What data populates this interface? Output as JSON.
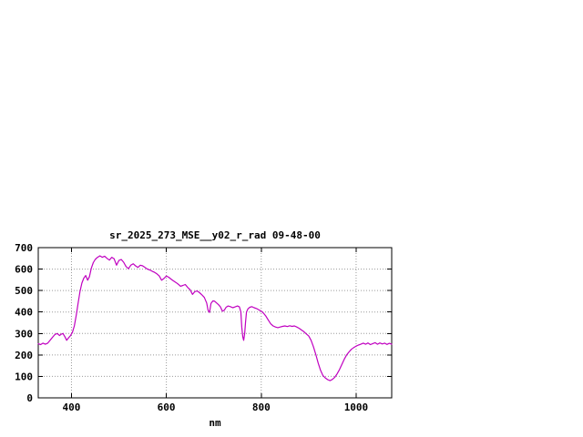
{
  "page": {
    "background": "#ffffff"
  },
  "chart_data": {
    "type": "line",
    "title": "sr_2025_273_MSE__y02_r_rad 09-48-00",
    "xlabel": "nm",
    "ylabel": "",
    "xlim": [
      330,
      1075
    ],
    "ylim": [
      0,
      700
    ],
    "xticks": [
      400,
      600,
      800,
      1000
    ],
    "yticks": [
      0,
      100,
      200,
      300,
      400,
      500,
      600,
      700
    ],
    "grid": true,
    "grid_style": "dotted",
    "legend": "none",
    "line_color": "#c000c0",
    "series": [
      {
        "name": "sr_2025_273_MSE__y02_r_rad",
        "points": [
          [
            330,
            252
          ],
          [
            335,
            248
          ],
          [
            340,
            255
          ],
          [
            345,
            250
          ],
          [
            350,
            255
          ],
          [
            355,
            268
          ],
          [
            360,
            282
          ],
          [
            365,
            295
          ],
          [
            370,
            300
          ],
          [
            375,
            290
          ],
          [
            378,
            296
          ],
          [
            382,
            300
          ],
          [
            386,
            285
          ],
          [
            390,
            268
          ],
          [
            394,
            280
          ],
          [
            398,
            290
          ],
          [
            402,
            305
          ],
          [
            406,
            335
          ],
          [
            410,
            385
          ],
          [
            414,
            440
          ],
          [
            418,
            495
          ],
          [
            422,
            535
          ],
          [
            426,
            558
          ],
          [
            430,
            570
          ],
          [
            434,
            548
          ],
          [
            438,
            565
          ],
          [
            442,
            605
          ],
          [
            446,
            630
          ],
          [
            450,
            645
          ],
          [
            455,
            655
          ],
          [
            460,
            662
          ],
          [
            465,
            655
          ],
          [
            470,
            660
          ],
          [
            475,
            650
          ],
          [
            480,
            642
          ],
          [
            485,
            655
          ],
          [
            490,
            648
          ],
          [
            495,
            618
          ],
          [
            500,
            640
          ],
          [
            505,
            645
          ],
          [
            510,
            632
          ],
          [
            515,
            612
          ],
          [
            520,
            602
          ],
          [
            525,
            618
          ],
          [
            530,
            625
          ],
          [
            535,
            615
          ],
          [
            540,
            608
          ],
          [
            545,
            618
          ],
          [
            550,
            615
          ],
          [
            555,
            608
          ],
          [
            560,
            600
          ],
          [
            565,
            596
          ],
          [
            570,
            590
          ],
          [
            575,
            585
          ],
          [
            580,
            578
          ],
          [
            585,
            568
          ],
          [
            590,
            548
          ],
          [
            595,
            556
          ],
          [
            600,
            568
          ],
          [
            605,
            562
          ],
          [
            610,
            553
          ],
          [
            615,
            545
          ],
          [
            620,
            538
          ],
          [
            625,
            530
          ],
          [
            630,
            520
          ],
          [
            635,
            524
          ],
          [
            640,
            528
          ],
          [
            645,
            514
          ],
          [
            650,
            504
          ],
          [
            655,
            482
          ],
          [
            660,
            495
          ],
          [
            665,
            498
          ],
          [
            670,
            490
          ],
          [
            675,
            480
          ],
          [
            680,
            468
          ],
          [
            685,
            442
          ],
          [
            688,
            408
          ],
          [
            691,
            398
          ],
          [
            694,
            440
          ],
          [
            698,
            452
          ],
          [
            702,
            450
          ],
          [
            706,
            442
          ],
          [
            710,
            434
          ],
          [
            714,
            424
          ],
          [
            718,
            404
          ],
          [
            722,
            408
          ],
          [
            726,
            422
          ],
          [
            730,
            428
          ],
          [
            735,
            425
          ],
          [
            740,
            420
          ],
          [
            745,
            424
          ],
          [
            750,
            428
          ],
          [
            754,
            424
          ],
          [
            757,
            400
          ],
          [
            759,
            330
          ],
          [
            761,
            285
          ],
          [
            763,
            268
          ],
          [
            765,
            300
          ],
          [
            767,
            355
          ],
          [
            769,
            400
          ],
          [
            772,
            415
          ],
          [
            776,
            422
          ],
          [
            780,
            425
          ],
          [
            785,
            420
          ],
          [
            790,
            416
          ],
          [
            795,
            410
          ],
          [
            800,
            404
          ],
          [
            805,
            394
          ],
          [
            810,
            380
          ],
          [
            815,
            362
          ],
          [
            820,
            345
          ],
          [
            825,
            335
          ],
          [
            830,
            330
          ],
          [
            835,
            327
          ],
          [
            840,
            330
          ],
          [
            845,
            333
          ],
          [
            850,
            335
          ],
          [
            855,
            332
          ],
          [
            860,
            336
          ],
          [
            865,
            333
          ],
          [
            870,
            335
          ],
          [
            875,
            330
          ],
          [
            880,
            324
          ],
          [
            885,
            316
          ],
          [
            890,
            308
          ],
          [
            895,
            298
          ],
          [
            900,
            288
          ],
          [
            905,
            268
          ],
          [
            910,
            238
          ],
          [
            915,
            202
          ],
          [
            920,
            162
          ],
          [
            925,
            128
          ],
          [
            930,
            104
          ],
          [
            935,
            93
          ],
          [
            940,
            85
          ],
          [
            945,
            80
          ],
          [
            950,
            86
          ],
          [
            955,
            96
          ],
          [
            960,
            112
          ],
          [
            965,
            132
          ],
          [
            970,
            156
          ],
          [
            975,
            180
          ],
          [
            980,
            200
          ],
          [
            985,
            214
          ],
          [
            990,
            226
          ],
          [
            995,
            234
          ],
          [
            1000,
            241
          ],
          [
            1005,
            246
          ],
          [
            1010,
            250
          ],
          [
            1015,
            255
          ],
          [
            1020,
            250
          ],
          [
            1025,
            256
          ],
          [
            1030,
            248
          ],
          [
            1035,
            253
          ],
          [
            1040,
            257
          ],
          [
            1045,
            250
          ],
          [
            1050,
            256
          ],
          [
            1055,
            251
          ],
          [
            1060,
            255
          ],
          [
            1065,
            249
          ],
          [
            1070,
            254
          ],
          [
            1075,
            250
          ]
        ]
      }
    ]
  }
}
